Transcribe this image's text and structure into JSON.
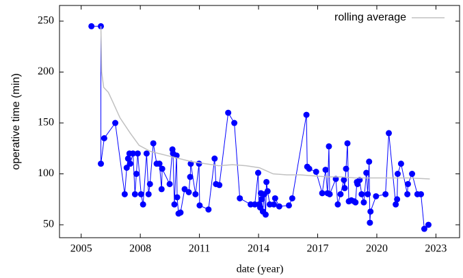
{
  "chart_data": {
    "type": "line",
    "xlabel": "date (year)",
    "ylabel": "operative time (min)",
    "xlim": [
      2003.9,
      2024.2
    ],
    "ylim": [
      37.3,
      265.4
    ],
    "xticks": [
      2005,
      2008,
      2011,
      2014,
      2017,
      2020,
      2023
    ],
    "yticks": [
      50,
      100,
      150,
      200,
      250
    ],
    "legend": "upper right",
    "series": [
      {
        "color": "#0000ff",
        "markers": true,
        "x": [
          2005.52,
          2006.0,
          2006.0,
          2006.17,
          2006.73,
          2007.21,
          2007.31,
          2007.38,
          2007.45,
          2007.49,
          2007.63,
          2007.73,
          2007.8,
          2007.87,
          2008.04,
          2008.14,
          2008.32,
          2008.42,
          2008.49,
          2008.66,
          2008.83,
          2008.97,
          2009.08,
          2009.11,
          2009.49,
          2009.63,
          2009.66,
          2009.73,
          2009.84,
          2009.87,
          2009.94,
          2010.04,
          2010.25,
          2010.46,
          2010.53,
          2010.56,
          2010.8,
          2010.98,
          2011.01,
          2011.46,
          2011.77,
          2011.84,
          2012.01,
          2012.46,
          2012.77,
          2013.05,
          2013.6,
          2013.81,
          2013.98,
          2014.02,
          2014.08,
          2014.12,
          2014.15,
          2014.22,
          2014.29,
          2014.36,
          2014.4,
          2014.46,
          2014.57,
          2014.78,
          2014.84,
          2015.05,
          2015.54,
          2015.71,
          2016.43,
          2016.47,
          2016.57,
          2016.92,
          2017.23,
          2017.4,
          2017.5,
          2017.57,
          2017.61,
          2017.92,
          2018.02,
          2018.16,
          2018.33,
          2018.37,
          2018.44,
          2018.51,
          2018.58,
          2018.71,
          2018.85,
          2018.92,
          2018.99,
          2019.02,
          2019.13,
          2019.23,
          2019.34,
          2019.47,
          2019.54,
          2019.61,
          2019.65,
          2019.68,
          2019.96,
          2020.44,
          2020.61,
          2020.96,
          2021.03,
          2021.06,
          2021.23,
          2021.55,
          2021.58,
          2021.79,
          2022.06,
          2022.24,
          2022.41,
          2022.62
        ],
        "values": [
          245,
          245,
          110,
          135,
          150,
          80,
          106,
          115,
          120,
          110,
          120,
          80,
          100,
          120,
          80,
          70,
          120,
          80,
          90,
          130,
          110,
          110,
          85,
          105,
          90,
          124,
          120,
          70,
          118,
          77,
          61,
          62,
          85,
          82,
          97,
          110,
          80,
          110,
          69,
          65,
          115,
          90,
          89,
          160,
          150,
          76,
          70,
          70,
          101,
          70,
          67,
          81,
          75,
          63,
          80,
          60,
          92,
          83,
          70,
          70,
          76,
          68,
          69,
          76,
          158,
          107,
          105,
          102,
          81,
          104,
          81,
          127,
          80,
          95,
          70,
          80,
          94,
          86,
          105,
          130,
          73,
          74,
          73,
          72,
          92,
          90,
          94,
          80,
          72,
          101,
          80,
          112,
          52,
          63,
          78,
          80,
          140,
          70,
          75,
          100,
          110,
          80,
          90,
          100,
          80,
          80,
          46,
          50
        ]
      },
      {
        "name": "rolling average",
        "color": "#c0c0c0",
        "markers": false,
        "x": [
          2006.0,
          2006.04,
          2006.14,
          2006.38,
          2006.62,
          2006.97,
          2007.49,
          2007.94,
          2008.52,
          2009.56,
          2010.6,
          2011.29,
          2011.98,
          2012.67,
          2013.36,
          2014.05,
          2014.74,
          2015.43,
          2016.12,
          2016.81,
          2017.5,
          2018.2,
          2018.89,
          2020.27,
          2021.65,
          2022.69
        ],
        "values": [
          245,
          200,
          185,
          180,
          170,
          155,
          140,
          128,
          122,
          117,
          112,
          110,
          108,
          109,
          108,
          106,
          100,
          99,
          99,
          98,
          97,
          97,
          96,
          96,
          96,
          95
        ]
      }
    ]
  }
}
